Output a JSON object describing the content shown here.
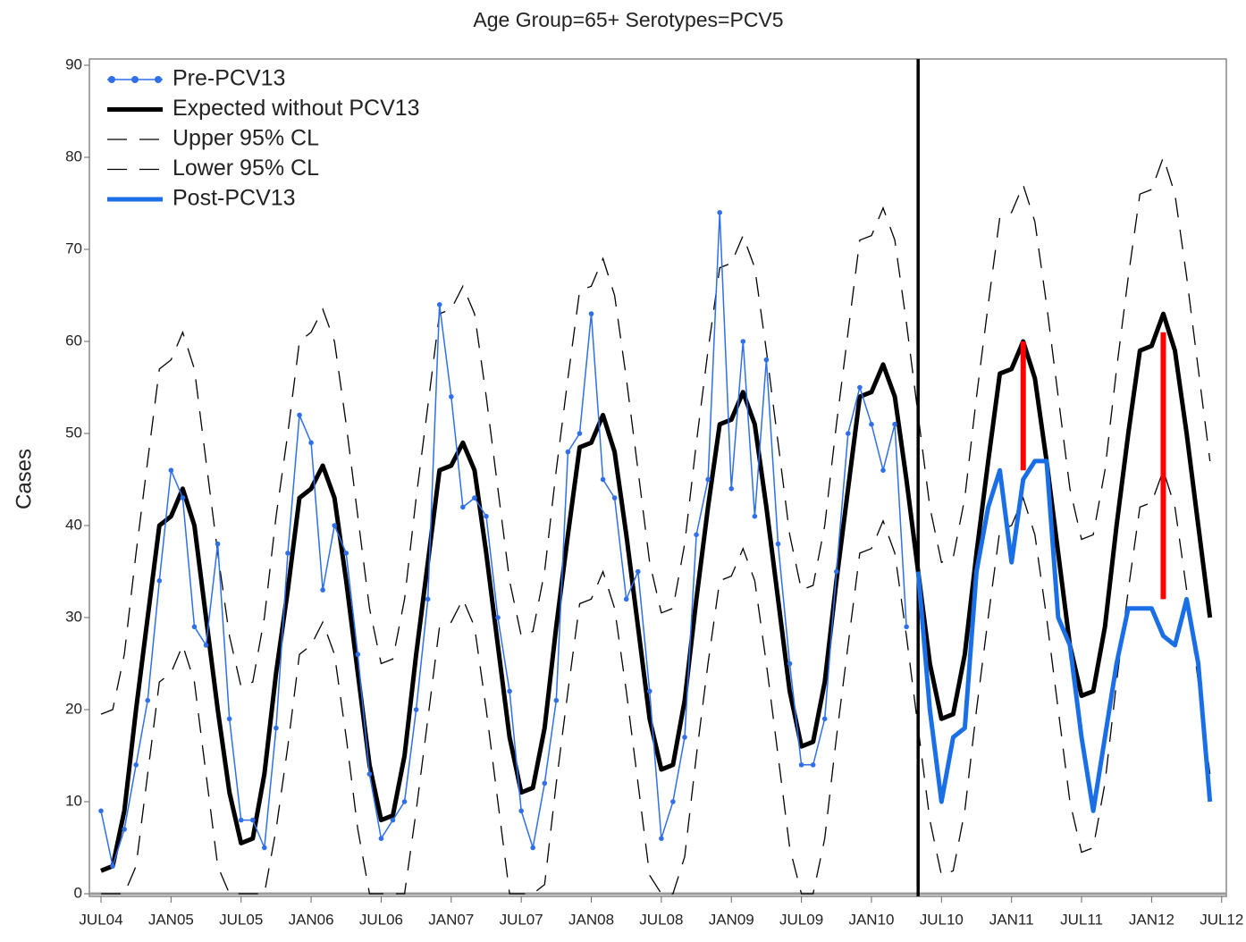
{
  "chart_data": {
    "type": "line",
    "title": "Age Group=65+ Serotypes=PCV5",
    "y_label": "Cases",
    "categories": [
      "JUL04",
      null,
      null,
      null,
      null,
      null,
      "JAN05",
      null,
      null,
      null,
      null,
      null,
      "JUL05",
      null,
      null,
      null,
      null,
      null,
      "JAN06",
      null,
      null,
      null,
      null,
      null,
      "JUL06",
      null,
      null,
      null,
      null,
      null,
      "JAN07",
      null,
      null,
      null,
      null,
      null,
      "JUL07",
      null,
      null,
      null,
      null,
      null,
      "JAN08",
      null,
      null,
      null,
      null,
      null,
      "JUL08",
      null,
      null,
      null,
      null,
      null,
      "JAN09",
      null,
      null,
      null,
      null,
      null,
      "JUL09",
      null,
      null,
      null,
      null,
      null,
      "JAN10",
      null,
      null,
      null,
      null,
      null,
      "JUL10",
      null,
      null,
      null,
      null,
      null,
      "JAN11",
      null,
      null,
      null,
      null,
      null,
      "JUL11",
      null,
      null,
      null,
      null,
      null,
      "JAN12",
      null,
      null,
      null,
      null,
      null,
      "JUL12"
    ],
    "ylim": [
      0,
      90
    ],
    "yticks": [
      0,
      10,
      20,
      30,
      40,
      50,
      60,
      70,
      80,
      90
    ],
    "legend": "top-left",
    "series": [
      {
        "name": "Pre-PCV13",
        "color": "#2f6fe8",
        "style": "dotted-markers",
        "values": [
          9,
          3,
          7,
          14,
          21,
          34,
          46,
          43,
          29,
          27,
          38,
          19,
          8,
          8,
          5,
          18,
          37,
          52,
          49,
          33,
          40,
          37,
          26,
          13,
          6,
          8,
          10,
          20,
          32,
          64,
          54,
          42,
          43,
          41,
          30,
          22,
          9,
          5,
          12,
          21,
          48,
          50,
          63,
          45,
          43,
          32,
          35,
          22,
          6,
          10,
          17,
          39,
          45,
          74,
          44,
          60,
          41,
          58,
          38,
          25,
          14,
          14,
          19,
          35,
          50,
          55,
          51,
          46,
          51,
          29,
          null,
          null,
          null,
          null,
          null,
          null,
          null,
          null,
          null,
          null,
          null,
          null,
          null,
          null,
          null,
          null,
          null,
          null,
          null,
          null,
          null,
          null,
          null,
          null,
          null,
          null,
          null
        ]
      },
      {
        "name": "Expected without PCV13",
        "color": "#000000",
        "style": "thick",
        "values": [
          2.5,
          3,
          9,
          20,
          30,
          40,
          41,
          44,
          40,
          30,
          20,
          11,
          5.5,
          6,
          13,
          24,
          33,
          43,
          44,
          46.5,
          43,
          34,
          24,
          14,
          8,
          8.5,
          15,
          26,
          36,
          46,
          46.5,
          49,
          46,
          37,
          27,
          17,
          11,
          11.5,
          18,
          29,
          39,
          48.5,
          49,
          52,
          48,
          39,
          29,
          19,
          13.5,
          14,
          21,
          32,
          42,
          51,
          51.5,
          54.5,
          51,
          42,
          32,
          22,
          16,
          16.5,
          23,
          34,
          44,
          54,
          54.5,
          57.5,
          54,
          45,
          35,
          25,
          19,
          19.5,
          26,
          37,
          47,
          56.5,
          57,
          60,
          56,
          47,
          37,
          27,
          21.5,
          22,
          29,
          40,
          50,
          59,
          59.5,
          63,
          59,
          50,
          40,
          30,
          null
        ]
      },
      {
        "name": "Upper 95% CL",
        "color": "#000000",
        "style": "dashed",
        "values": [
          19.5,
          20,
          26,
          37,
          47,
          57,
          58,
          61,
          57,
          47,
          37,
          28,
          22.5,
          23,
          30,
          41,
          50,
          60,
          61,
          63.5,
          60,
          51,
          41,
          31,
          25,
          25.5,
          32,
          43,
          53,
          63,
          63.5,
          66,
          63,
          54,
          44,
          34,
          28,
          28.5,
          35,
          46,
          56,
          65.5,
          66,
          69,
          65,
          56,
          46,
          36,
          30.5,
          31,
          38,
          49,
          59,
          68,
          68.5,
          71.5,
          68,
          59,
          49,
          39,
          33,
          33.5,
          40,
          51,
          61,
          71,
          71.5,
          74.5,
          71,
          62,
          52,
          42,
          36,
          36.5,
          43,
          54,
          64,
          73.5,
          74,
          77,
          73,
          64,
          54,
          44,
          38.5,
          39,
          46,
          57,
          67,
          76,
          76.5,
          80,
          76,
          67,
          57,
          47,
          null
        ]
      },
      {
        "name": "Lower 95% CL",
        "color": "#000000",
        "style": "dashed",
        "values": [
          0,
          0,
          0,
          3,
          13,
          23,
          24,
          27,
          23,
          13,
          3,
          0,
          0,
          0,
          0,
          7,
          16,
          26,
          27,
          29.5,
          26,
          17,
          7,
          0,
          0,
          0,
          0,
          9,
          19,
          29,
          29.5,
          32,
          29,
          20,
          10,
          0,
          0,
          0,
          1,
          12,
          22,
          31.5,
          32,
          35,
          31,
          22,
          12,
          2,
          0,
          0,
          4,
          15,
          25,
          34,
          34.5,
          37.5,
          34,
          25,
          15,
          5,
          0,
          0,
          6,
          17,
          27,
          37,
          37.5,
          40.5,
          37,
          28,
          18,
          8,
          2,
          2.5,
          9,
          20,
          30,
          39.5,
          40,
          43,
          39,
          30,
          20,
          10,
          4.5,
          5,
          12,
          23,
          33,
          42,
          42.5,
          46,
          42,
          33,
          23,
          13,
          null
        ]
      },
      {
        "name": "Post-PCV13",
        "color": "#1a6fe6",
        "style": "thick",
        "values": [
          null,
          null,
          null,
          null,
          null,
          null,
          null,
          null,
          null,
          null,
          null,
          null,
          null,
          null,
          null,
          null,
          null,
          null,
          null,
          null,
          null,
          null,
          null,
          null,
          null,
          null,
          null,
          null,
          null,
          null,
          null,
          null,
          null,
          null,
          null,
          null,
          null,
          null,
          null,
          null,
          null,
          null,
          null,
          null,
          null,
          null,
          null,
          null,
          null,
          null,
          null,
          null,
          null,
          null,
          null,
          null,
          null,
          null,
          null,
          null,
          null,
          null,
          null,
          null,
          null,
          null,
          null,
          null,
          null,
          null,
          35,
          20,
          10,
          17,
          18,
          35,
          42,
          46,
          36,
          45,
          47,
          47,
          30,
          27,
          17,
          9,
          17,
          25,
          31,
          31,
          31,
          28,
          27,
          32,
          25,
          10,
          null
        ]
      }
    ],
    "ranges": {
      "color": "#ff0000",
      "low": [
        null,
        null,
        null,
        null,
        null,
        null,
        null,
        null,
        null,
        null,
        null,
        null,
        null,
        null,
        null,
        null,
        null,
        null,
        null,
        null,
        null,
        null,
        null,
        null,
        null,
        null,
        null,
        null,
        null,
        null,
        null,
        null,
        null,
        null,
        null,
        null,
        null,
        null,
        null,
        null,
        null,
        null,
        null,
        null,
        null,
        null,
        null,
        null,
        null,
        null,
        null,
        null,
        null,
        null,
        null,
        null,
        null,
        null,
        null,
        null,
        null,
        null,
        null,
        null,
        null,
        null,
        null,
        null,
        null,
        null,
        null,
        null,
        null,
        null,
        null,
        null,
        null,
        null,
        null,
        46,
        null,
        null,
        null,
        null,
        null,
        null,
        null,
        null,
        null,
        null,
        null,
        32,
        null,
        null,
        null,
        null,
        null
      ],
      "high": [
        null,
        null,
        null,
        null,
        null,
        null,
        null,
        null,
        null,
        null,
        null,
        null,
        null,
        null,
        null,
        null,
        null,
        null,
        null,
        null,
        null,
        null,
        null,
        null,
        null,
        null,
        null,
        null,
        null,
        null,
        null,
        null,
        null,
        null,
        null,
        null,
        null,
        null,
        null,
        null,
        null,
        null,
        null,
        null,
        null,
        null,
        null,
        null,
        null,
        null,
        null,
        null,
        null,
        null,
        null,
        null,
        null,
        null,
        null,
        null,
        null,
        null,
        null,
        null,
        null,
        null,
        null,
        null,
        null,
        null,
        null,
        null,
        null,
        null,
        null,
        null,
        null,
        null,
        null,
        60,
        null,
        null,
        null,
        null,
        null,
        null,
        null,
        null,
        null,
        null,
        null,
        61,
        null,
        null,
        null,
        null,
        null
      ]
    }
  }
}
